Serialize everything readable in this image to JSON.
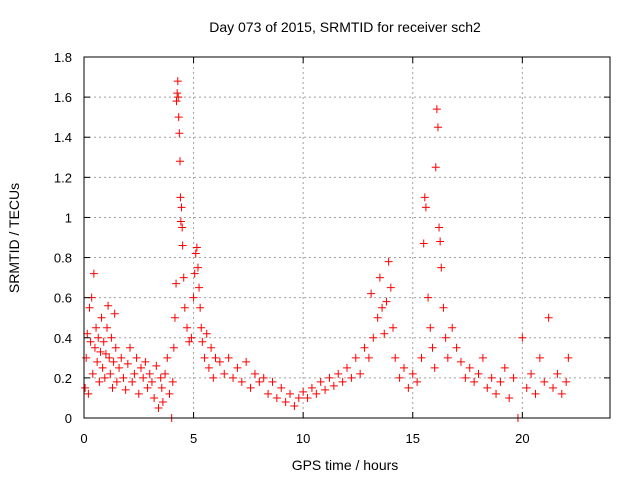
{
  "chart_data": {
    "type": "scatter",
    "title": "Day 073 of 2015, SRMTID for receiver sch2",
    "xlabel": "GPS time / hours",
    "ylabel": "SRMTID / TECUs",
    "xlim": [
      0,
      24
    ],
    "ylim": [
      0,
      1.8
    ],
    "xticks": [
      0,
      5,
      10,
      15,
      20
    ],
    "xtick_labels": [
      "0",
      "5",
      "10",
      "15",
      "20"
    ],
    "yticks": [
      0,
      0.2,
      0.4,
      0.6,
      0.8,
      1,
      1.2,
      1.4,
      1.6,
      1.8
    ],
    "ytick_labels": [
      "0",
      "0.2",
      "0.4",
      "0.6",
      "0.8",
      "1",
      "1.2",
      "1.4",
      "1.6",
      "1.8"
    ],
    "grid": true,
    "marker": "+",
    "color": "#ff0000",
    "series": [
      {
        "name": "SRMTID",
        "points": [
          [
            0.05,
            0.15
          ],
          [
            0.1,
            0.3
          ],
          [
            0.15,
            0.42
          ],
          [
            0.2,
            0.12
          ],
          [
            0.25,
            0.55
          ],
          [
            0.3,
            0.38
          ],
          [
            0.35,
            0.6
          ],
          [
            0.4,
            0.22
          ],
          [
            0.45,
            0.72
          ],
          [
            0.5,
            0.35
          ],
          [
            0.55,
            0.45
          ],
          [
            0.6,
            0.28
          ],
          [
            0.65,
            0.4
          ],
          [
            0.7,
            0.18
          ],
          [
            0.75,
            0.33
          ],
          [
            0.8,
            0.5
          ],
          [
            0.85,
            0.25
          ],
          [
            0.9,
            0.38
          ],
          [
            0.95,
            0.2
          ],
          [
            1.0,
            0.32
          ],
          [
            1.05,
            0.45
          ],
          [
            1.1,
            0.56
          ],
          [
            1.15,
            0.3
          ],
          [
            1.2,
            0.22
          ],
          [
            1.25,
            0.4
          ],
          [
            1.3,
            0.15
          ],
          [
            1.35,
            0.28
          ],
          [
            1.4,
            0.52
          ],
          [
            1.45,
            0.35
          ],
          [
            1.5,
            0.18
          ],
          [
            1.6,
            0.25
          ],
          [
            1.7,
            0.3
          ],
          [
            1.8,
            0.2
          ],
          [
            1.9,
            0.14
          ],
          [
            2.0,
            0.27
          ],
          [
            2.1,
            0.35
          ],
          [
            2.2,
            0.18
          ],
          [
            2.3,
            0.22
          ],
          [
            2.4,
            0.3
          ],
          [
            2.5,
            0.12
          ],
          [
            2.6,
            0.25
          ],
          [
            2.7,
            0.2
          ],
          [
            2.8,
            0.28
          ],
          [
            2.9,
            0.15
          ],
          [
            3.0,
            0.22
          ],
          [
            3.1,
            0.18
          ],
          [
            3.2,
            0.1
          ],
          [
            3.3,
            0.26
          ],
          [
            3.4,
            0.05
          ],
          [
            3.5,
            0.2
          ],
          [
            3.55,
            0.15
          ],
          [
            3.6,
            0.08
          ],
          [
            3.7,
            0.22
          ],
          [
            3.8,
            0.3
          ],
          [
            3.9,
            0.12
          ],
          [
            4.0,
            0.0
          ],
          [
            4.05,
            0.18
          ],
          [
            4.1,
            0.35
          ],
          [
            4.15,
            0.5
          ],
          [
            4.2,
            0.67
          ],
          [
            4.22,
            1.58
          ],
          [
            4.25,
            1.62
          ],
          [
            4.28,
            1.68
          ],
          [
            4.3,
            1.6
          ],
          [
            4.32,
            1.5
          ],
          [
            4.35,
            1.42
          ],
          [
            4.38,
            1.28
          ],
          [
            4.4,
            1.1
          ],
          [
            4.42,
            0.98
          ],
          [
            4.45,
            1.05
          ],
          [
            4.48,
            0.95
          ],
          [
            4.5,
            0.86
          ],
          [
            4.55,
            0.7
          ],
          [
            4.6,
            0.55
          ],
          [
            4.7,
            0.45
          ],
          [
            4.8,
            0.38
          ],
          [
            4.9,
            0.4
          ],
          [
            5.0,
            0.6
          ],
          [
            5.05,
            0.72
          ],
          [
            5.1,
            0.82
          ],
          [
            5.15,
            0.85
          ],
          [
            5.2,
            0.75
          ],
          [
            5.25,
            0.65
          ],
          [
            5.3,
            0.55
          ],
          [
            5.35,
            0.45
          ],
          [
            5.4,
            0.38
          ],
          [
            5.5,
            0.3
          ],
          [
            5.6,
            0.42
          ],
          [
            5.7,
            0.25
          ],
          [
            5.8,
            0.35
          ],
          [
            5.9,
            0.2
          ],
          [
            6.0,
            0.3
          ],
          [
            6.2,
            0.28
          ],
          [
            6.4,
            0.22
          ],
          [
            6.6,
            0.3
          ],
          [
            6.8,
            0.2
          ],
          [
            7.0,
            0.25
          ],
          [
            7.2,
            0.18
          ],
          [
            7.4,
            0.28
          ],
          [
            7.6,
            0.15
          ],
          [
            7.8,
            0.22
          ],
          [
            8.0,
            0.18
          ],
          [
            8.2,
            0.2
          ],
          [
            8.4,
            0.12
          ],
          [
            8.6,
            0.18
          ],
          [
            8.8,
            0.1
          ],
          [
            9.0,
            0.15
          ],
          [
            9.2,
            0.08
          ],
          [
            9.4,
            0.12
          ],
          [
            9.6,
            0.06
          ],
          [
            9.8,
            0.1
          ],
          [
            10.0,
            0.13
          ],
          [
            10.2,
            0.1
          ],
          [
            10.4,
            0.15
          ],
          [
            10.6,
            0.12
          ],
          [
            10.8,
            0.18
          ],
          [
            11.0,
            0.14
          ],
          [
            11.2,
            0.2
          ],
          [
            11.4,
            0.16
          ],
          [
            11.6,
            0.22
          ],
          [
            11.8,
            0.18
          ],
          [
            12.0,
            0.25
          ],
          [
            12.2,
            0.2
          ],
          [
            12.4,
            0.3
          ],
          [
            12.6,
            0.22
          ],
          [
            12.8,
            0.35
          ],
          [
            13.0,
            0.3
          ],
          [
            13.1,
            0.62
          ],
          [
            13.2,
            0.4
          ],
          [
            13.4,
            0.5
          ],
          [
            13.5,
            0.7
          ],
          [
            13.6,
            0.55
          ],
          [
            13.7,
            0.42
          ],
          [
            13.8,
            0.58
          ],
          [
            13.9,
            0.78
          ],
          [
            14.0,
            0.65
          ],
          [
            14.1,
            0.45
          ],
          [
            14.2,
            0.3
          ],
          [
            14.4,
            0.2
          ],
          [
            14.6,
            0.25
          ],
          [
            14.8,
            0.15
          ],
          [
            15.0,
            0.22
          ],
          [
            15.2,
            0.18
          ],
          [
            15.4,
            0.3
          ],
          [
            15.5,
            0.87
          ],
          [
            15.55,
            1.1
          ],
          [
            15.6,
            1.05
          ],
          [
            15.7,
            0.6
          ],
          [
            15.8,
            0.45
          ],
          [
            15.9,
            0.35
          ],
          [
            16.0,
            0.25
          ],
          [
            16.05,
            1.25
          ],
          [
            16.1,
            1.54
          ],
          [
            16.15,
            1.45
          ],
          [
            16.2,
            0.95
          ],
          [
            16.25,
            0.88
          ],
          [
            16.3,
            0.75
          ],
          [
            16.4,
            0.55
          ],
          [
            16.5,
            0.4
          ],
          [
            16.6,
            0.3
          ],
          [
            16.8,
            0.45
          ],
          [
            17.0,
            0.35
          ],
          [
            17.2,
            0.28
          ],
          [
            17.4,
            0.2
          ],
          [
            17.6,
            0.25
          ],
          [
            17.8,
            0.18
          ],
          [
            18.0,
            0.22
          ],
          [
            18.2,
            0.3
          ],
          [
            18.4,
            0.15
          ],
          [
            18.6,
            0.2
          ],
          [
            18.8,
            0.12
          ],
          [
            19.0,
            0.18
          ],
          [
            19.2,
            0.25
          ],
          [
            19.4,
            0.1
          ],
          [
            19.6,
            0.2
          ],
          [
            19.8,
            0.0
          ],
          [
            20.0,
            0.4
          ],
          [
            20.2,
            0.15
          ],
          [
            20.4,
            0.22
          ],
          [
            20.6,
            0.12
          ],
          [
            20.8,
            0.3
          ],
          [
            21.0,
            0.18
          ],
          [
            21.2,
            0.5
          ],
          [
            21.4,
            0.15
          ],
          [
            21.6,
            0.22
          ],
          [
            21.8,
            0.12
          ],
          [
            22.0,
            0.18
          ],
          [
            22.1,
            0.3
          ]
        ]
      }
    ]
  }
}
